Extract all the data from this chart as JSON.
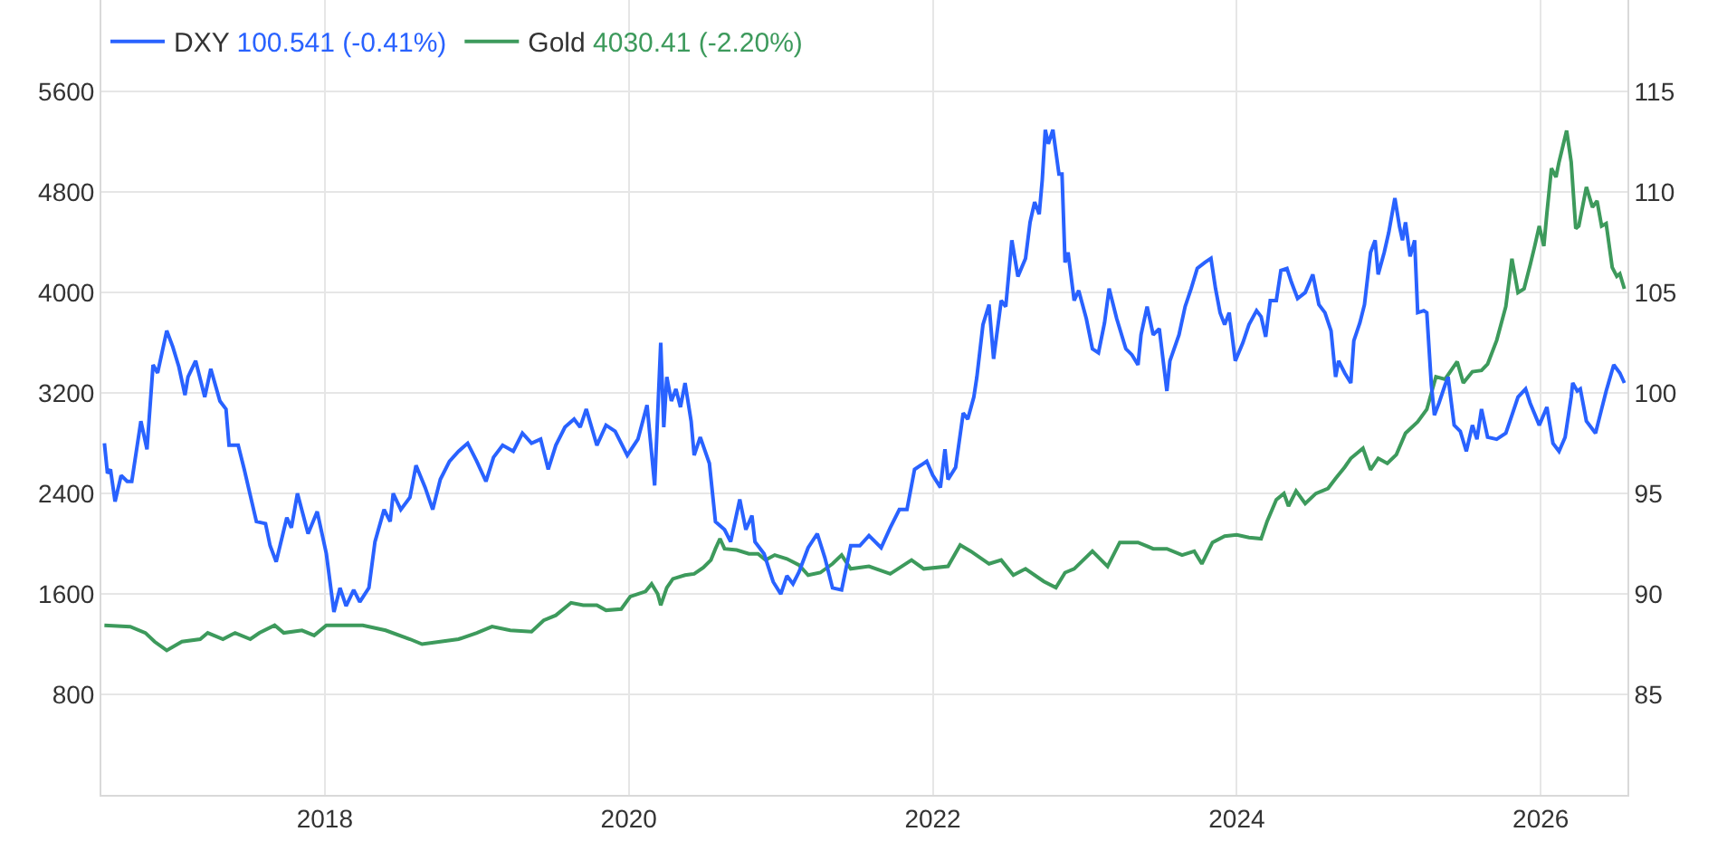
{
  "chart_data": {
    "type": "line",
    "series": [
      {
        "name": "DXY",
        "color": "#2962ff",
        "axis": "y2",
        "x": [
          2016.55,
          2016.57,
          2016.59,
          2016.62,
          2016.66,
          2016.7,
          2016.73,
          2016.79,
          2016.83,
          2016.87,
          2016.9,
          2016.96,
          2017.0,
          2017.04,
          2017.08,
          2017.1,
          2017.15,
          2017.21,
          2017.25,
          2017.31,
          2017.35,
          2017.37,
          2017.43,
          2017.47,
          2017.55,
          2017.61,
          2017.64,
          2017.68,
          2017.75,
          2017.78,
          2017.82,
          2017.89,
          2017.95,
          2018.01,
          2018.06,
          2018.1,
          2018.14,
          2018.19,
          2018.23,
          2018.29,
          2018.33,
          2018.39,
          2018.43,
          2018.45,
          2018.5,
          2018.56,
          2018.6,
          2018.66,
          2018.71,
          2018.76,
          2018.82,
          2018.88,
          2018.94,
          2019.0,
          2019.06,
          2019.11,
          2019.17,
          2019.24,
          2019.3,
          2019.36,
          2019.42,
          2019.47,
          2019.52,
          2019.58,
          2019.64,
          2019.68,
          2019.72,
          2019.79,
          2019.85,
          2019.91,
          2019.99,
          2020.06,
          2020.12,
          2020.17,
          2020.21,
          2020.23,
          2020.25,
          2020.28,
          2020.31,
          2020.34,
          2020.37,
          2020.41,
          2020.43,
          2020.47,
          2020.53,
          2020.57,
          2020.63,
          2020.67,
          2020.73,
          2020.77,
          2020.81,
          2020.83,
          2020.89,
          2020.95,
          2021.0,
          2021.04,
          2021.08,
          2021.12,
          2021.18,
          2021.24,
          2021.29,
          2021.34,
          2021.4,
          2021.46,
          2021.52,
          2021.58,
          2021.66,
          2021.72,
          2021.78,
          2021.83,
          2021.88,
          2021.96,
          2022.0,
          2022.05,
          2022.08,
          2022.1,
          2022.15,
          2022.2,
          2022.23,
          2022.27,
          2022.29,
          2022.33,
          2022.37,
          2022.4,
          2022.45,
          2022.48,
          2022.52,
          2022.56,
          2022.61,
          2022.64,
          2022.67,
          2022.7,
          2022.72,
          2022.74,
          2022.76,
          2022.79,
          2022.83,
          2022.85,
          2022.87,
          2022.89,
          2022.93,
          2022.96,
          2023.01,
          2023.05,
          2023.09,
          2023.13,
          2023.16,
          2023.21,
          2023.27,
          2023.31,
          2023.35,
          2023.37,
          2023.41,
          2023.45,
          2023.49,
          2023.54,
          2023.56,
          2023.62,
          2023.66,
          2023.7,
          2023.74,
          2023.79,
          2023.83,
          2023.86,
          2023.89,
          2023.92,
          2023.95,
          2023.99,
          2024.04,
          2024.08,
          2024.13,
          2024.16,
          2024.19,
          2024.22,
          2024.26,
          2024.29,
          2024.33,
          2024.36,
          2024.4,
          2024.45,
          2024.5,
          2024.54,
          2024.58,
          2024.62,
          2024.65,
          2024.67,
          2024.71,
          2024.75,
          2024.77,
          2024.81,
          2024.84,
          2024.88,
          2024.91,
          2024.93,
          2024.97,
          2025.0,
          2025.04,
          2025.07,
          2025.09,
          2025.11,
          2025.14,
          2025.17,
          2025.19,
          2025.23,
          2025.25,
          2025.28,
          2025.3,
          2025.33,
          2025.37,
          2025.39,
          2025.43,
          2025.47,
          2025.51,
          2025.55,
          2025.58,
          2025.61,
          2025.65,
          2025.71,
          2025.77,
          2025.81,
          2025.85,
          2025.9,
          2025.93,
          2025.99,
          2026.04,
          2026.08,
          2026.12,
          2026.16,
          2026.2,
          2026.21,
          2026.24,
          2026.26,
          2026.3,
          2026.36,
          2026.4,
          2026.43,
          2026.48,
          2026.52,
          2026.55
        ],
        "values": [
          97.5,
          96.0,
          96.2,
          94.6,
          95.9,
          95.6,
          95.6,
          98.6,
          97.2,
          101.4,
          101.0,
          103.1,
          102.3,
          101.3,
          99.9,
          100.8,
          101.6,
          99.8,
          101.2,
          99.6,
          99.2,
          97.4,
          97.4,
          96.2,
          93.6,
          93.5,
          92.4,
          91.6,
          93.8,
          93.3,
          95.0,
          93.0,
          94.1,
          92.0,
          89.1,
          90.3,
          89.4,
          90.2,
          89.6,
          90.3,
          92.6,
          94.2,
          93.6,
          95.0,
          94.2,
          94.8,
          96.4,
          95.3,
          94.2,
          95.7,
          96.6,
          97.1,
          97.5,
          96.6,
          95.6,
          96.8,
          97.4,
          97.1,
          98.0,
          97.5,
          97.7,
          96.2,
          97.4,
          98.3,
          98.7,
          98.3,
          99.2,
          97.4,
          98.4,
          98.1,
          96.9,
          97.7,
          99.4,
          95.4,
          102.5,
          98.3,
          100.8,
          99.6,
          100.2,
          99.3,
          100.5,
          98.6,
          96.9,
          97.8,
          96.5,
          93.6,
          93.2,
          92.6,
          94.7,
          93.2,
          93.9,
          92.6,
          92.0,
          90.6,
          90.0,
          90.9,
          90.5,
          91.1,
          92.3,
          93.0,
          91.8,
          90.3,
          90.2,
          92.4,
          92.4,
          92.9,
          92.3,
          93.3,
          94.2,
          94.2,
          96.2,
          96.6,
          95.9,
          95.3,
          97.2,
          95.7,
          96.3,
          99.0,
          98.7,
          99.8,
          100.8,
          103.4,
          104.4,
          101.7,
          104.6,
          104.3,
          107.6,
          105.8,
          106.7,
          108.5,
          109.5,
          108.9,
          110.6,
          113.1,
          112.4,
          113.1,
          110.9,
          110.9,
          106.5,
          107.0,
          104.6,
          105.1,
          103.7,
          102.2,
          102.0,
          103.5,
          105.2,
          103.7,
          102.2,
          101.9,
          101.4,
          102.9,
          104.3,
          102.9,
          103.2,
          100.1,
          101.6,
          102.9,
          104.3,
          105.2,
          106.2,
          106.5,
          106.7,
          105.2,
          104.0,
          103.4,
          104.0,
          101.6,
          102.5,
          103.4,
          104.1,
          103.8,
          102.8,
          104.6,
          104.6,
          106.1,
          106.2,
          105.5,
          104.7,
          105.0,
          105.9,
          104.4,
          104.0,
          103.1,
          100.8,
          101.6,
          101.0,
          100.5,
          102.6,
          103.5,
          104.4,
          107.0,
          107.6,
          105.9,
          107.0,
          108.0,
          109.7,
          108.3,
          107.6,
          108.5,
          106.8,
          107.6,
          104.0,
          104.1,
          104.0,
          100.4,
          98.9,
          99.5,
          100.4,
          100.8,
          98.4,
          98.1,
          97.1,
          98.4,
          97.7,
          99.2,
          97.8,
          97.7,
          98.0,
          98.9,
          99.8,
          100.2,
          99.5,
          98.4,
          99.3,
          97.5,
          97.1,
          97.8,
          99.8,
          100.5,
          100.1,
          100.2,
          98.6,
          98.0,
          99.2,
          100.1,
          101.4,
          101.0,
          100.5
        ]
      },
      {
        "name": "Gold",
        "color": "#3d9a5c",
        "x": [
          2016.55,
          2016.72,
          2016.82,
          2016.88,
          2016.96,
          2017.06,
          2017.18,
          2017.23,
          2017.33,
          2017.41,
          2017.51,
          2017.57,
          2017.67,
          2017.73,
          2017.85,
          2017.93,
          2018.01,
          2018.09,
          2018.25,
          2018.4,
          2018.56,
          2018.64,
          2018.76,
          2018.88,
          2019.0,
          2019.1,
          2019.22,
          2019.36,
          2019.44,
          2019.52,
          2019.62,
          2019.7,
          2019.79,
          2019.85,
          2019.95,
          2020.01,
          2020.11,
          2020.15,
          2020.19,
          2020.21,
          2020.25,
          2020.29,
          2020.37,
          2020.43,
          2020.49,
          2020.54,
          2020.57,
          2020.6,
          2020.63,
          2020.71,
          2020.79,
          2020.85,
          2020.9,
          2020.96,
          2021.04,
          2021.12,
          2021.18,
          2021.26,
          2021.34,
          2021.4,
          2021.46,
          2021.58,
          2021.72,
          2021.86,
          2021.94,
          2022.1,
          2022.18,
          2022.25,
          2022.37,
          2022.45,
          2022.53,
          2022.61,
          2022.73,
          2022.81,
          2022.87,
          2022.93,
          2023.05,
          2023.15,
          2023.23,
          2023.35,
          2023.45,
          2023.54,
          2023.64,
          2023.72,
          2023.77,
          2023.84,
          2023.92,
          2024.0,
          2024.08,
          2024.16,
          2024.2,
          2024.26,
          2024.31,
          2024.34,
          2024.39,
          2024.45,
          2024.52,
          2024.6,
          2024.65,
          2024.71,
          2024.75,
          2024.83,
          2024.88,
          2024.93,
          2024.99,
          2025.05,
          2025.11,
          2025.19,
          2025.25,
          2025.31,
          2025.37,
          2025.45,
          2025.49,
          2025.55,
          2025.61,
          2025.65,
          2025.71,
          2025.77,
          2025.81,
          2025.85,
          2025.89,
          2025.93,
          2025.96,
          2025.99,
          2026.02,
          2026.04,
          2026.07,
          2026.1,
          2026.12,
          2026.17,
          2026.2,
          2026.23,
          2026.25,
          2026.3,
          2026.34,
          2026.37,
          2026.4,
          2026.43,
          2026.47,
          2026.5,
          2026.52,
          2026.55
        ],
        "values": [
          1350,
          1340,
          1290,
          1220,
          1150,
          1220,
          1240,
          1290,
          1240,
          1290,
          1240,
          1290,
          1350,
          1290,
          1310,
          1270,
          1350,
          1350,
          1350,
          1310,
          1240,
          1200,
          1220,
          1240,
          1290,
          1340,
          1310,
          1300,
          1390,
          1430,
          1530,
          1510,
          1510,
          1470,
          1480,
          1580,
          1620,
          1680,
          1600,
          1510,
          1650,
          1720,
          1750,
          1760,
          1810,
          1870,
          1960,
          2040,
          1960,
          1950,
          1920,
          1920,
          1870,
          1910,
          1880,
          1830,
          1750,
          1770,
          1840,
          1910,
          1800,
          1820,
          1760,
          1870,
          1800,
          1820,
          1990,
          1940,
          1840,
          1870,
          1750,
          1800,
          1700,
          1650,
          1770,
          1800,
          1940,
          1820,
          2010,
          2010,
          1960,
          1960,
          1910,
          1940,
          1840,
          2010,
          2060,
          2070,
          2050,
          2040,
          2180,
          2350,
          2400,
          2300,
          2420,
          2320,
          2400,
          2440,
          2520,
          2610,
          2680,
          2760,
          2590,
          2680,
          2640,
          2710,
          2880,
          2970,
          3070,
          3330,
          3310,
          3450,
          3280,
          3370,
          3380,
          3430,
          3620,
          3890,
          4270,
          4000,
          4030,
          4220,
          4370,
          4530,
          4370,
          4630,
          4990,
          4920,
          5040,
          5290,
          5040,
          4510,
          4530,
          4840,
          4680,
          4730,
          4530,
          4550,
          4200,
          4130,
          4150,
          4030
        ]
      }
    ],
    "annotations": [
      "100.541 (-0.41%)",
      "4030.41 (-2.20%)"
    ],
    "xlim": [
      2016.53,
      2026.57
    ],
    "xticks": [
      2018,
      2020,
      2022,
      2024,
      2026
    ],
    "ylim": [
      0,
      6330
    ],
    "yticks": [
      800,
      1600,
      2400,
      3200,
      4000,
      4800,
      5600
    ],
    "y2lim": [
      80,
      119.56
    ],
    "y2ticks": [
      85,
      90,
      95,
      100,
      105,
      110,
      115
    ],
    "grid": true,
    "legend": "top left",
    "line_style": "solid"
  }
}
